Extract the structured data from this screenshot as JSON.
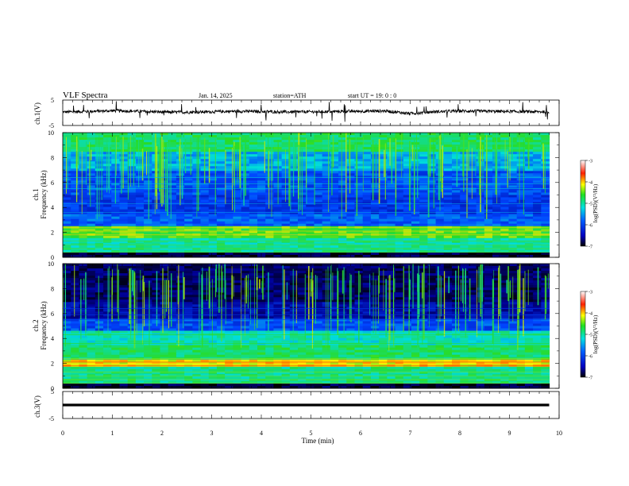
{
  "header": {
    "title": "VLF  Spectra",
    "date": "Jan. 14, 2025",
    "station": "station=ATH",
    "start": "start  UT  =    19: 0  : 0"
  },
  "chart_data": [
    {
      "type": "line",
      "panel": "ch1-waveform",
      "ylabel": "ch.1(V)",
      "ylim": [
        -5,
        5
      ],
      "yticks": [
        "5",
        "-5"
      ],
      "xlim": [
        0,
        10
      ],
      "approx_level": 0.5,
      "x": [
        0,
        0.5,
        1,
        1.5,
        2,
        2.5,
        3,
        3.5,
        4,
        4.5,
        5,
        5.5,
        6,
        6.5,
        7,
        7.5,
        8,
        8.5,
        9,
        9.5,
        9.8
      ],
      "y": [
        0.3,
        0.5,
        0.8,
        0.6,
        0.3,
        0.2,
        0.4,
        0.6,
        0.5,
        0.3,
        0.4,
        0.5,
        0.6,
        0.7,
        -0.3,
        0.4,
        0.7,
        0.6,
        0.5,
        0.4,
        0.4
      ]
    },
    {
      "type": "heatmap",
      "panel": "ch1-spectrogram",
      "ylabel_line1": "ch.1",
      "ylabel_line2": "Frequency  (kHz)",
      "ylim": [
        0,
        10
      ],
      "xlim": [
        0,
        10
      ],
      "yticks": [
        "0",
        "2",
        "4",
        "6",
        "8",
        "10"
      ],
      "colorbar": {
        "label": "log(PSD)(V²/Hz)",
        "range": [
          -7,
          -3
        ],
        "ticks": [
          "-3",
          "-4",
          "-5",
          "-6",
          "-7"
        ]
      }
    },
    {
      "type": "heatmap",
      "panel": "ch2-spectrogram",
      "ylabel_line1": "ch.2",
      "ylabel_line2": "Frequency  (kHz)",
      "ylim": [
        0,
        10
      ],
      "xlim": [
        0,
        10
      ],
      "yticks": [
        "0",
        "2",
        "4",
        "6",
        "8",
        "10"
      ],
      "colorbar": {
        "label": "log(PSD)(V²/Hz)",
        "range": [
          -7,
          -3
        ],
        "ticks": [
          "-3",
          "-4",
          "-5",
          "-6",
          "-7"
        ]
      }
    },
    {
      "type": "line",
      "panel": "ch3-waveform",
      "ylabel": "ch.3(V)",
      "ylim": [
        -5,
        5
      ],
      "yticks": [
        "5",
        "-5"
      ],
      "xlim": [
        0,
        10
      ],
      "x": [
        0,
        9.8
      ],
      "y": [
        0,
        0
      ]
    }
  ],
  "xaxis": {
    "label": "Time  (min)",
    "ticks": [
      "0",
      "1",
      "2",
      "3",
      "4",
      "5",
      "6",
      "7",
      "8",
      "9",
      "10"
    ]
  },
  "colors": {
    "noise_floor": "#000000",
    "low": "#0030c8",
    "mid": "#00d0c0",
    "high": "#30e030",
    "peak": "#ff2000"
  }
}
